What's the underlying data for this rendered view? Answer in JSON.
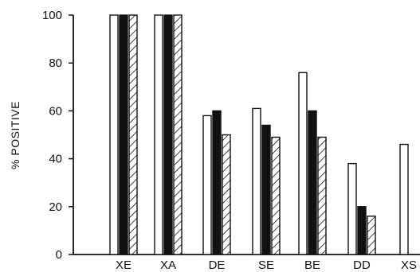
{
  "chart_data": {
    "type": "bar",
    "title": "",
    "xlabel": "",
    "ylabel": "% POSITIVE",
    "ylim": [
      0,
      100
    ],
    "yticks": [
      0,
      20,
      40,
      60,
      80,
      100
    ],
    "categories": [
      "XE",
      "XA",
      "DE",
      "SE",
      "BE",
      "DD",
      "XS"
    ],
    "series": [
      {
        "fill": "white",
        "values": [
          100,
          100,
          58,
          61,
          76,
          38,
          46
        ]
      },
      {
        "fill": "black",
        "values": [
          100,
          100,
          60,
          54,
          60,
          20,
          null
        ]
      },
      {
        "fill": "hatched",
        "values": [
          100,
          100,
          50,
          49,
          49,
          16,
          null
        ]
      }
    ],
    "grid": false,
    "legend": "none",
    "colors": {
      "ink": "#111111",
      "background": "#ffffff"
    }
  }
}
